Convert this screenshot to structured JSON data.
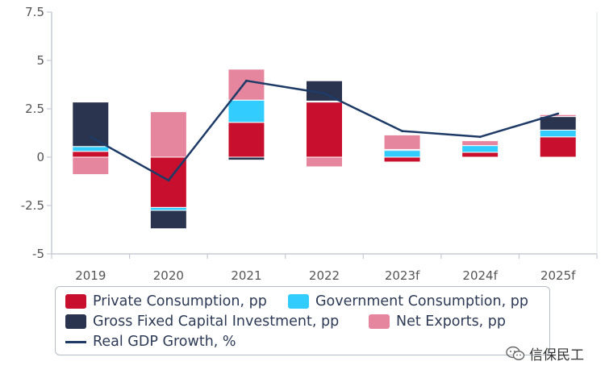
{
  "chart_data": {
    "type": "bar",
    "stacked": true,
    "categories": [
      "2019",
      "2020",
      "2021",
      "2022",
      "2023f",
      "2024f",
      "2025f"
    ],
    "ylim": [
      -5,
      7.5
    ],
    "yticks": [
      "-5",
      "-2.5",
      "0",
      "2.5",
      "5",
      "7.5"
    ],
    "grid": false,
    "legend_position": "bottom",
    "series": [
      {
        "name": "Private Consumption, pp",
        "kind": "bar",
        "color": "#c8102e",
        "values": [
          0.3,
          -2.6,
          1.8,
          2.85,
          -0.25,
          0.25,
          1.05
        ]
      },
      {
        "name": "Government Consumption, pp",
        "kind": "bar",
        "color": "#33ccff",
        "values": [
          0.25,
          -0.15,
          1.15,
          0.05,
          0.35,
          0.35,
          0.35
        ]
      },
      {
        "name": "Gross Fixed Capital Investment, pp",
        "kind": "bar",
        "color": "#2a344f",
        "values": [
          2.3,
          -0.95,
          -0.15,
          1.05,
          0.05,
          0.0,
          0.7
        ]
      },
      {
        "name": "Net Exports, pp",
        "kind": "bar",
        "color": "#e6869e",
        "values": [
          -0.9,
          2.35,
          1.6,
          -0.5,
          0.75,
          0.25,
          0.1
        ]
      },
      {
        "name": "Real GDP Growth, %",
        "kind": "line",
        "color": "#1e3a66",
        "values": [
          1.05,
          -1.2,
          3.95,
          3.3,
          1.35,
          1.05,
          2.25
        ]
      }
    ]
  },
  "legend": {
    "items": [
      {
        "label": "Private Consumption, pp",
        "color": "#c8102e",
        "kind": "box"
      },
      {
        "label": "Government Consumption, pp",
        "color": "#33ccff",
        "kind": "box"
      },
      {
        "label": "Gross Fixed Capital Investment, pp",
        "color": "#2a344f",
        "kind": "box"
      },
      {
        "label": "Net Exports, pp",
        "color": "#e6869e",
        "kind": "box"
      },
      {
        "label": "Real GDP Growth, %",
        "color": "#1e3a66",
        "kind": "line"
      }
    ]
  },
  "watermark": {
    "text": "信保民工",
    "icon": "wechat-icon"
  }
}
